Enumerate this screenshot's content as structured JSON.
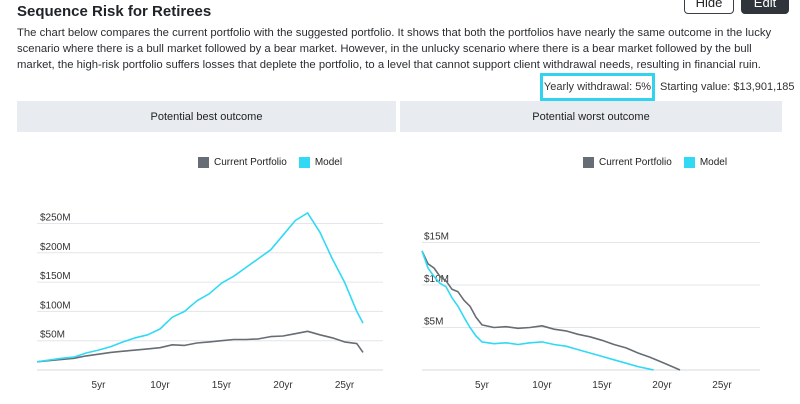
{
  "header": {
    "title": "Sequence Risk for Retirees",
    "hide_label": "Hide",
    "edit_label": "Edit"
  },
  "description": "The chart below compares the current portfolio with the suggested portfolio. It shows that both the portfolios have nearly the same outcome in the lucky scenario where there is a bull market followed by a bear market. However, in the unlucky scenario where there is a bear market followed by the bull market, the high-risk portfolio suffers losses that deplete the portfolio, to a level that cannot support client withdrawal needs, resulting in financial ruin.",
  "meta": {
    "withdrawal_label": "Yearly withdrawal: 5%",
    "starting_label": "Starting value: $13,901,185"
  },
  "colors": {
    "current": "#666d75",
    "model": "#31d9f4",
    "highlight": "#32d3ee"
  },
  "legend": {
    "current": "Current Portfolio",
    "model": "Model"
  },
  "panels": {
    "best_title": "Potential best outcome",
    "worst_title": "Potential worst outcome"
  },
  "chart_data": [
    {
      "type": "line",
      "title": "Potential best outcome",
      "xlabel": "",
      "ylabel": "",
      "xlim": [
        0,
        26.5
      ],
      "ylim": [
        0,
        290
      ],
      "x_ticks": [
        5,
        10,
        15,
        20,
        25
      ],
      "x_tick_labels": [
        "5yr",
        "10yr",
        "15yr",
        "20yr",
        "25yr"
      ],
      "y_ticks": [
        50,
        100,
        150,
        200,
        250
      ],
      "y_tick_labels": [
        "$50M",
        "$100M",
        "$150M",
        "$200M",
        "$250M"
      ],
      "legend_position": "top-center",
      "grid": "horizontal",
      "series": [
        {
          "name": "Current Portfolio",
          "points": [
            [
              0,
              14
            ],
            [
              1,
              16
            ],
            [
              2,
              18
            ],
            [
              3,
              20
            ],
            [
              4,
              24
            ],
            [
              5,
              27
            ],
            [
              6,
              30
            ],
            [
              7,
              32
            ],
            [
              8,
              34
            ],
            [
              9,
              36
            ],
            [
              10,
              38
            ],
            [
              11,
              43
            ],
            [
              12,
              42
            ],
            [
              13,
              46
            ],
            [
              14,
              48
            ],
            [
              15,
              50
            ],
            [
              16,
              52
            ],
            [
              17,
              52
            ],
            [
              18,
              53
            ],
            [
              19,
              57
            ],
            [
              20,
              58
            ],
            [
              21,
              62
            ],
            [
              22,
              66
            ],
            [
              23,
              60
            ],
            [
              24,
              55
            ],
            [
              25,
              48
            ],
            [
              26,
              45
            ],
            [
              26.5,
              30
            ]
          ]
        },
        {
          "name": "Model",
          "points": [
            [
              0,
              14
            ],
            [
              1,
              17
            ],
            [
              2,
              20
            ],
            [
              3,
              22
            ],
            [
              4,
              29
            ],
            [
              5,
              34
            ],
            [
              6,
              40
            ],
            [
              7,
              48
            ],
            [
              8,
              55
            ],
            [
              9,
              60
            ],
            [
              10,
              70
            ],
            [
              11,
              90
            ],
            [
              12,
              100
            ],
            [
              13,
              118
            ],
            [
              14,
              130
            ],
            [
              15,
              148
            ],
            [
              16,
              160
            ],
            [
              17,
              175
            ],
            [
              18,
              190
            ],
            [
              19,
              205
            ],
            [
              20,
              230
            ],
            [
              21,
              255
            ],
            [
              22,
              268
            ],
            [
              23,
              235
            ],
            [
              24,
              190
            ],
            [
              25,
              150
            ],
            [
              26,
              100
            ],
            [
              26.5,
              80
            ]
          ]
        }
      ]
    },
    {
      "type": "line",
      "title": "Potential worst outcome",
      "xlabel": "",
      "ylabel": "",
      "xlim": [
        0,
        26.5
      ],
      "ylim": [
        0,
        20
      ],
      "x_ticks": [
        5,
        10,
        15,
        20,
        25
      ],
      "x_tick_labels": [
        "5yr",
        "10yr",
        "15yr",
        "20yr",
        "25yr"
      ],
      "y_ticks": [
        5,
        10,
        15
      ],
      "y_tick_labels": [
        "$5M",
        "$10M",
        "$15M"
      ],
      "legend_position": "top-center",
      "grid": "horizontal",
      "series": [
        {
          "name": "Current Portfolio",
          "points": [
            [
              0,
              14
            ],
            [
              0.5,
              12.5
            ],
            [
              1,
              12
            ],
            [
              1.5,
              11
            ],
            [
              2,
              10.5
            ],
            [
              2.5,
              9.5
            ],
            [
              3,
              9.2
            ],
            [
              3.5,
              8.2
            ],
            [
              4,
              7.5
            ],
            [
              4.5,
              6.2
            ],
            [
              5,
              5.3
            ],
            [
              6,
              5.0
            ],
            [
              7,
              5.1
            ],
            [
              8,
              4.9
            ],
            [
              9,
              5.0
            ],
            [
              10,
              5.2
            ],
            [
              11,
              4.8
            ],
            [
              12,
              4.6
            ],
            [
              13,
              4.2
            ],
            [
              14,
              3.9
            ],
            [
              15,
              3.5
            ],
            [
              16,
              3.0
            ],
            [
              17,
              2.6
            ],
            [
              18,
              2.0
            ],
            [
              19,
              1.5
            ],
            [
              20,
              0.9
            ],
            [
              21,
              0.3
            ],
            [
              21.5,
              0
            ]
          ]
        },
        {
          "name": "Model",
          "points": [
            [
              0,
              14
            ],
            [
              0.5,
              12
            ],
            [
              1,
              11
            ],
            [
              1.5,
              10.2
            ],
            [
              2,
              9.8
            ],
            [
              2.5,
              8.5
            ],
            [
              3,
              7.5
            ],
            [
              3.5,
              6.2
            ],
            [
              4,
              5.0
            ],
            [
              4.5,
              4.0
            ],
            [
              5,
              3.3
            ],
            [
              6,
              3.1
            ],
            [
              7,
              3.2
            ],
            [
              8,
              3.0
            ],
            [
              9,
              3.2
            ],
            [
              10,
              3.3
            ],
            [
              11,
              3.0
            ],
            [
              12,
              2.8
            ],
            [
              13,
              2.4
            ],
            [
              14,
              2.0
            ],
            [
              15,
              1.6
            ],
            [
              16,
              1.2
            ],
            [
              17,
              0.8
            ],
            [
              18,
              0.4
            ],
            [
              19,
              0.1
            ],
            [
              19.3,
              0
            ]
          ]
        }
      ]
    }
  ]
}
